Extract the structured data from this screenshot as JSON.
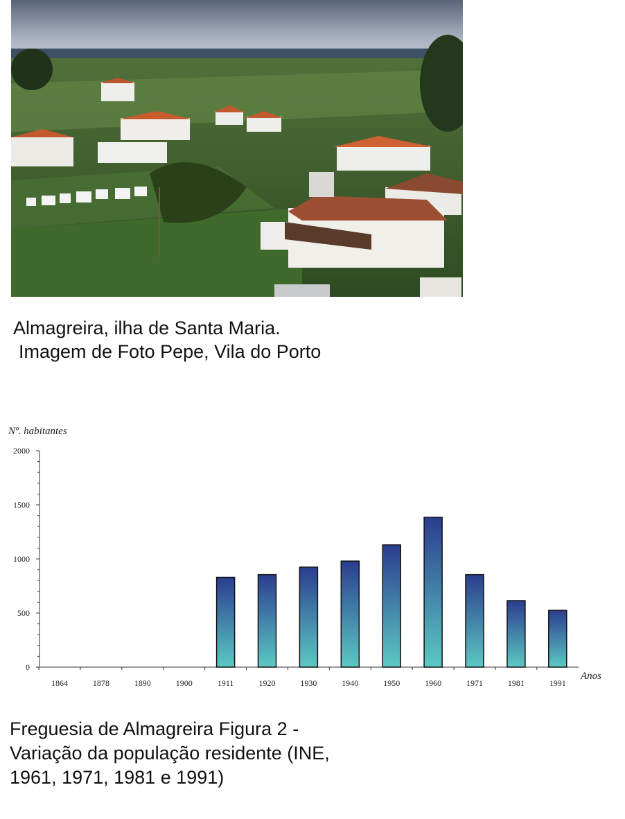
{
  "photo": {
    "caption_line1": "Almagreira, ilha de Santa Maria.",
    "caption_line2": "Imagem de Foto Pepe, Vila do Porto"
  },
  "chart_data": {
    "type": "bar",
    "ylabel": "Nº. habitantes",
    "xlabel": "Anos",
    "ylim": [
      0,
      2000
    ],
    "yticks": [
      "0",
      "500",
      "1000",
      "1500",
      "2000"
    ],
    "categories": [
      "1864",
      "1878",
      "1890",
      "1900",
      "1911",
      "1920",
      "1930",
      "1940",
      "1950",
      "1960",
      "1971",
      "1981",
      "1991"
    ],
    "values": [
      0,
      0,
      0,
      0,
      830,
      855,
      925,
      980,
      1130,
      1385,
      855,
      615,
      525
    ],
    "colors": {
      "bar_top": "#2b3d8f",
      "bar_bottom": "#5cc9c3",
      "bar_edge": "#111111",
      "axis": "#333333"
    }
  },
  "figure_caption": {
    "line1": "Freguesia de Almagreira Figura 2 -",
    "line2": "Variação da população residente (INE,",
    "line3": "1961, 1971, 1981 e 1991)"
  }
}
